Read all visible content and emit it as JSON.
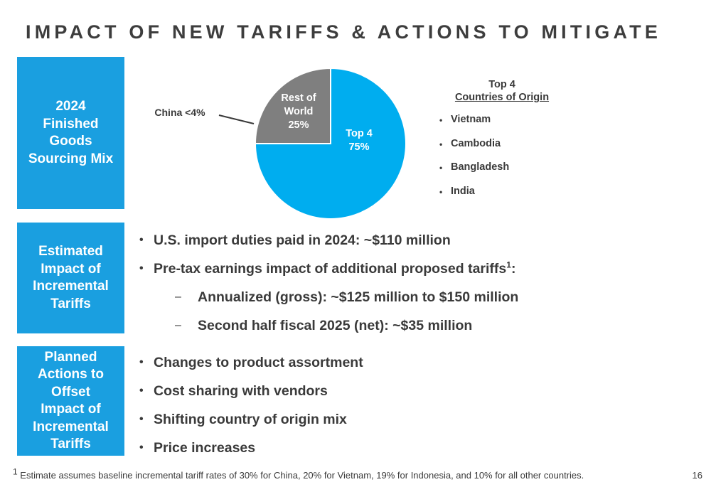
{
  "title": "IMPACT OF NEW TARIFFS & ACTIONS TO MITIGATE",
  "sections": {
    "sourcing_label": "2024\nFinished\nGoods\nSourcing Mix",
    "impact_label": "Estimated\nImpact of\nIncremental\nTariffs",
    "actions_label": "Planned\nActions to\nOffset\nImpact of\nIncremental\nTariffs"
  },
  "chart_data": {
    "type": "pie",
    "slices": [
      {
        "label": "Top 4",
        "value": 75,
        "value_label": "75%",
        "color": "#00adef"
      },
      {
        "label": "Rest of World",
        "value": 25,
        "value_label": "25%",
        "color": "#7f7f7f"
      }
    ],
    "annotation": "China <4%",
    "start": "top, clockwise"
  },
  "legend": {
    "title": "Top 4",
    "subtitle": "Countries of Origin",
    "items": [
      "Vietnam",
      "Cambodia",
      "Bangladesh",
      "India"
    ]
  },
  "impact": {
    "duties": "U.S. import duties paid in 2024:  ~$110 million",
    "pretax": "Pre-tax earnings impact of additional proposed tariffs",
    "pretax_sup": "1",
    "pretax_suffix": ":",
    "annualized": "Annualized (gross): ~$125 million to $150 million",
    "second_half": "Second half fiscal 2025 (net): ~$35 million",
    "dash": "–",
    "bullet": "•"
  },
  "actions": {
    "items": [
      "Changes to product assortment",
      "Cost sharing with vendors",
      "Shifting country of origin mix",
      "Price increases"
    ]
  },
  "footnote": {
    "sup": "1",
    "text": " Estimate assumes baseline incremental tariff rates of 30% for China, 20% for Vietnam, 19% for Indonesia, and 10% for all other countries."
  },
  "page_number": "16"
}
